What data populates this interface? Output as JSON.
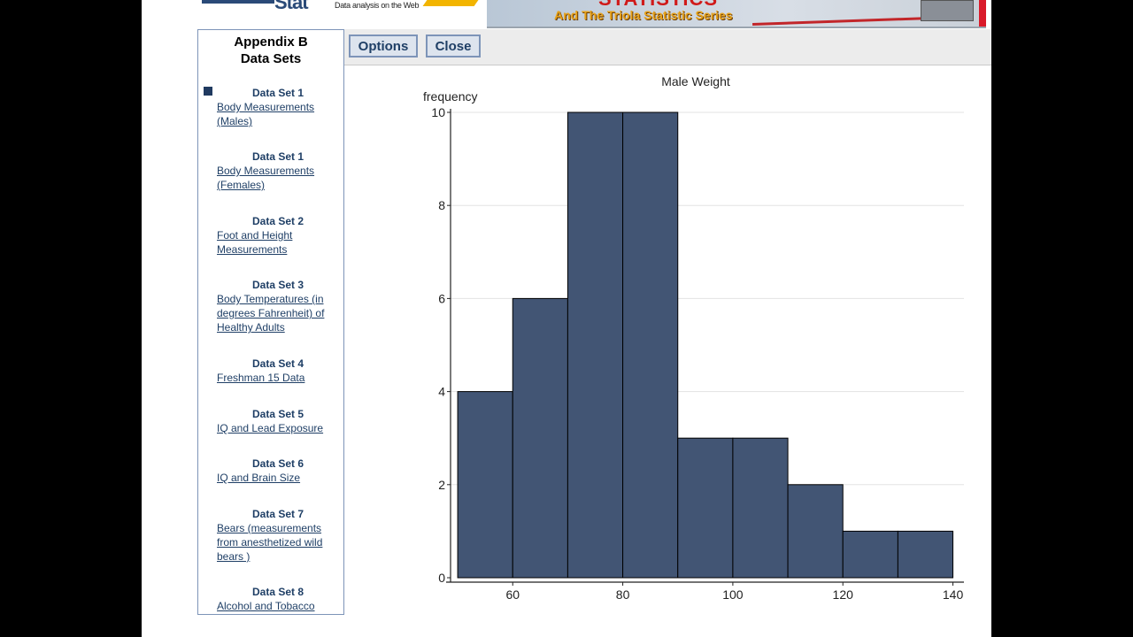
{
  "banner": {
    "logo_text": "Stat",
    "tagline": "Data analysis on the Web",
    "headline": "STATISTICS",
    "subtitle": "And The Triola Statistic Series"
  },
  "sidebar": {
    "title_line1": "Appendix B",
    "title_line2": "Data Sets",
    "items": [
      {
        "heading": "Data Set 1",
        "link": "Body Measurements (Males)"
      },
      {
        "heading": "Data Set 1",
        "link": "Body Measurements (Females)"
      },
      {
        "heading": "Data Set 2",
        "link": "Foot and Height Measurements"
      },
      {
        "heading": "Data Set 3",
        "link": "Body Temperatures (in degrees Fahrenheit) of Healthy Adults"
      },
      {
        "heading": "Data Set 4",
        "link": "Freshman 15 Data"
      },
      {
        "heading": "Data Set 5",
        "link": "IQ and Lead Exposure"
      },
      {
        "heading": "Data Set 6",
        "link": "IQ and Brain Size"
      },
      {
        "heading": "Data Set 7",
        "link": "Bears (measurements from anesthetized wild bears )"
      },
      {
        "heading": "Data Set 8",
        "link": "Alcohol and Tobacco"
      }
    ]
  },
  "toolbar": {
    "options_label": "Options",
    "close_label": "Close"
  },
  "chart_data": {
    "type": "bar",
    "title": "Male Weight",
    "xlabel": "",
    "ylabel": "frequency",
    "bins": [
      {
        "x0": 50,
        "x1": 60,
        "count": 4
      },
      {
        "x0": 60,
        "x1": 70,
        "count": 6
      },
      {
        "x0": 70,
        "x1": 80,
        "count": 10
      },
      {
        "x0": 80,
        "x1": 90,
        "count": 10
      },
      {
        "x0": 90,
        "x1": 100,
        "count": 3
      },
      {
        "x0": 100,
        "x1": 110,
        "count": 3
      },
      {
        "x0": 110,
        "x1": 120,
        "count": 2
      },
      {
        "x0": 120,
        "x1": 130,
        "count": 1
      },
      {
        "x0": 130,
        "x1": 140,
        "count": 1
      }
    ],
    "xlim": [
      48.7,
      142
    ],
    "ylim": [
      0,
      10
    ],
    "xticks": [
      60,
      80,
      100,
      120,
      140
    ],
    "yticks": [
      0,
      2,
      4,
      6,
      8,
      10
    ],
    "grid": "horizontal",
    "bar_color": "#425574",
    "edge_color": "#000000"
  }
}
